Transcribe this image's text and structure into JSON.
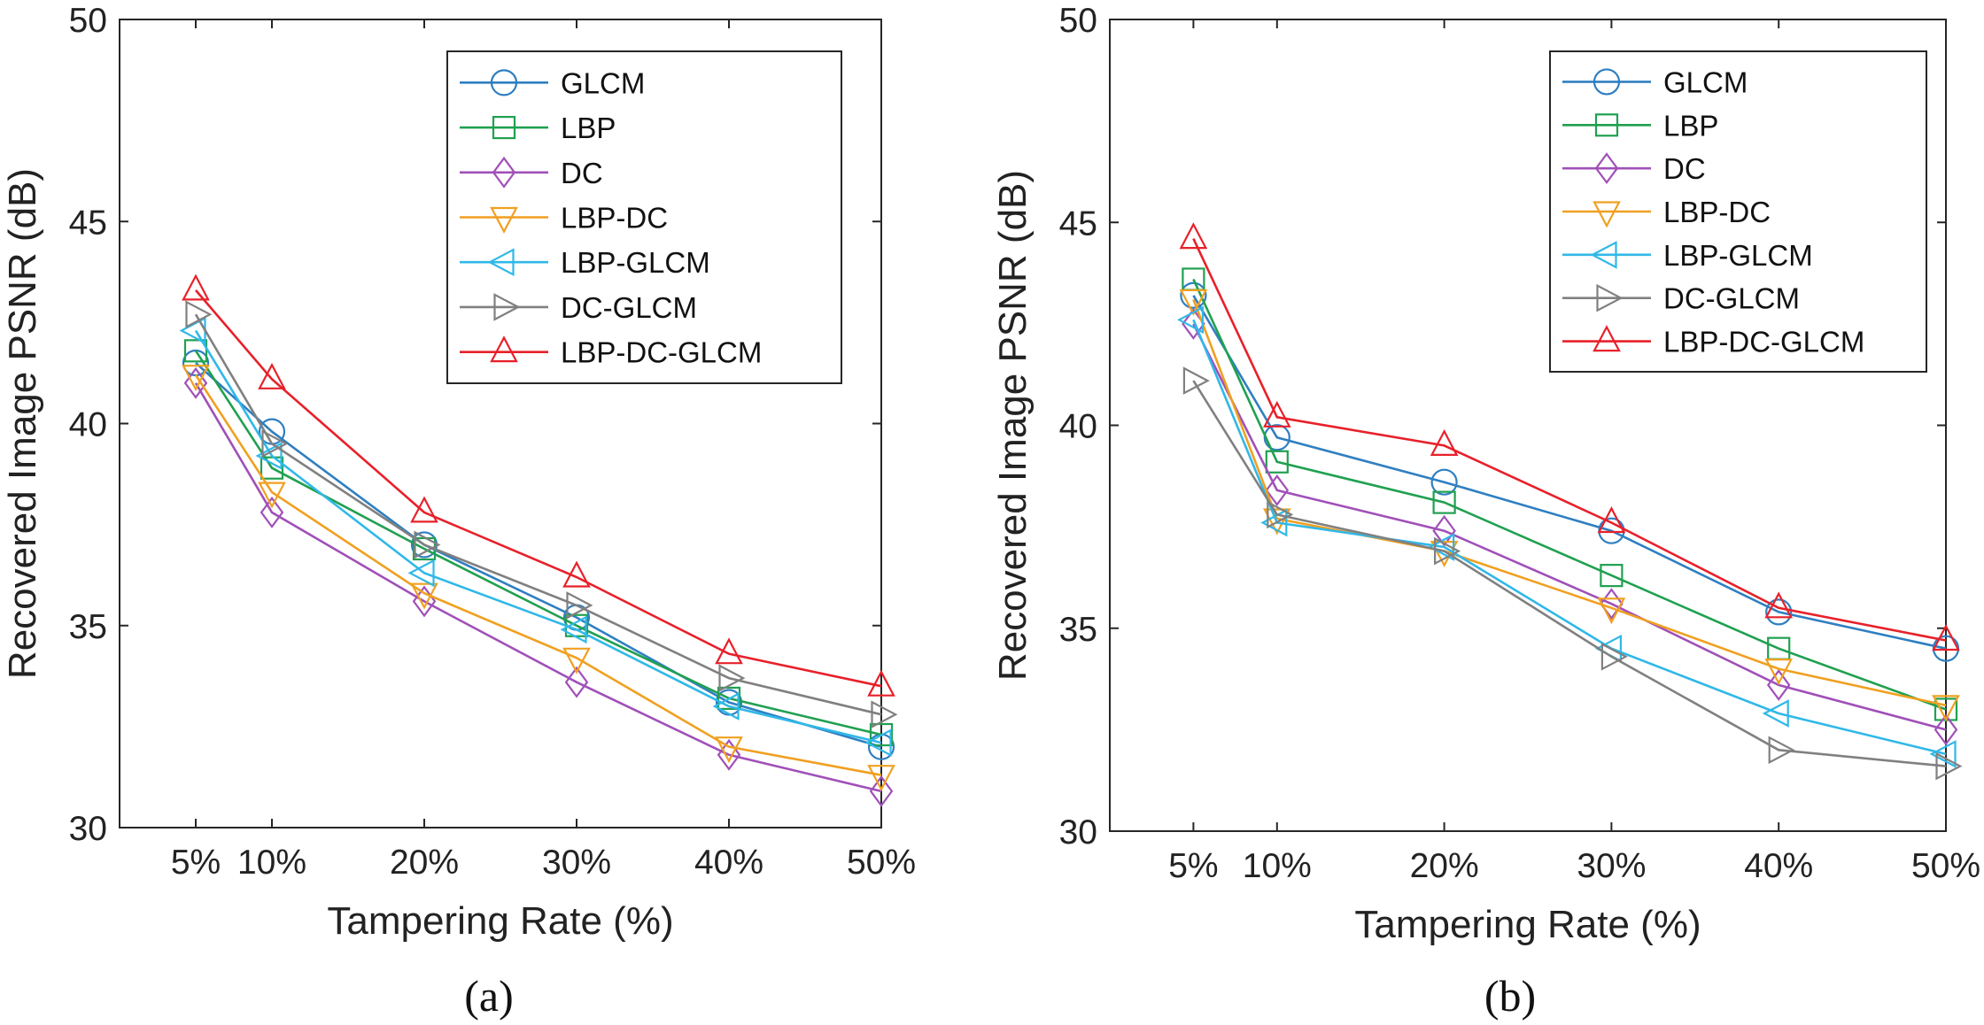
{
  "figure": {
    "captions": [
      "(a)",
      "(b)"
    ]
  },
  "series_colors": {
    "GLCM": "#2F7FC1",
    "LBP": "#20A050",
    "DC": "#A050B8",
    "LBP-DC": "#F0A020",
    "LBP-GLCM": "#30B8E8",
    "DC-GLCM": "#808080",
    "LBP-DC-GLCM": "#E8202A"
  },
  "chart_data": [
    {
      "type": "line",
      "caption": "(a)",
      "xlabel": "Tampering Rate (%)",
      "ylabel": "Recovered Image PSNR (dB)",
      "x": [
        5,
        10,
        20,
        30,
        40,
        50
      ],
      "categories": [
        "5%",
        "10%",
        "20%",
        "30%",
        "40%",
        "50%"
      ],
      "xlim": [
        0,
        50
      ],
      "ylim": [
        30,
        50
      ],
      "yticks": [
        30,
        35,
        40,
        45,
        50
      ],
      "legend_position": "top-right",
      "series": [
        {
          "name": "GLCM",
          "marker": "circle",
          "values": [
            41.5,
            39.8,
            37.0,
            35.2,
            33.1,
            32.0
          ]
        },
        {
          "name": "LBP",
          "marker": "square",
          "values": [
            41.8,
            38.9,
            36.9,
            35.0,
            33.2,
            32.3
          ]
        },
        {
          "name": "DC",
          "marker": "diamond",
          "values": [
            41.0,
            37.8,
            35.6,
            33.6,
            31.8,
            30.9
          ]
        },
        {
          "name": "LBP-DC",
          "marker": "triangle-down",
          "values": [
            41.2,
            38.3,
            35.8,
            34.2,
            32.0,
            31.3
          ]
        },
        {
          "name": "LBP-GLCM",
          "marker": "triangle-left",
          "values": [
            42.3,
            39.2,
            36.3,
            34.9,
            33.0,
            32.1
          ]
        },
        {
          "name": "DC-GLCM",
          "marker": "triangle-right",
          "values": [
            42.7,
            39.5,
            37.0,
            35.5,
            33.7,
            32.8
          ]
        },
        {
          "name": "LBP-DC-GLCM",
          "marker": "triangle-up",
          "values": [
            43.3,
            41.1,
            37.8,
            36.2,
            34.3,
            33.5
          ]
        }
      ]
    },
    {
      "type": "line",
      "caption": "(b)",
      "xlabel": "Tampering Rate (%)",
      "ylabel": "Recovered Image PSNR (dB)",
      "x": [
        5,
        10,
        20,
        30,
        40,
        50
      ],
      "categories": [
        "5%",
        "10%",
        "20%",
        "30%",
        "40%",
        "50%"
      ],
      "xlim": [
        0,
        50
      ],
      "ylim": [
        30,
        50
      ],
      "yticks": [
        30,
        35,
        40,
        45,
        50
      ],
      "legend_position": "top-right",
      "series": [
        {
          "name": "GLCM",
          "marker": "circle",
          "values": [
            43.2,
            39.7,
            38.6,
            37.4,
            35.4,
            34.5
          ]
        },
        {
          "name": "LBP",
          "marker": "square",
          "values": [
            43.6,
            39.1,
            38.1,
            36.3,
            34.5,
            33.0
          ]
        },
        {
          "name": "DC",
          "marker": "diamond",
          "values": [
            42.5,
            38.4,
            37.4,
            35.6,
            33.6,
            32.5
          ]
        },
        {
          "name": "LBP-DC",
          "marker": "triangle-down",
          "values": [
            43.1,
            37.7,
            36.9,
            35.5,
            34.0,
            33.1
          ]
        },
        {
          "name": "LBP-GLCM",
          "marker": "triangle-left",
          "values": [
            42.6,
            37.6,
            37.0,
            34.5,
            32.9,
            31.9
          ]
        },
        {
          "name": "DC-GLCM",
          "marker": "triangle-right",
          "values": [
            41.1,
            37.8,
            36.9,
            34.3,
            32.0,
            31.6
          ]
        },
        {
          "name": "LBP-DC-GLCM",
          "marker": "triangle-up",
          "values": [
            44.6,
            40.2,
            39.5,
            37.6,
            35.5,
            34.7
          ]
        }
      ]
    }
  ]
}
